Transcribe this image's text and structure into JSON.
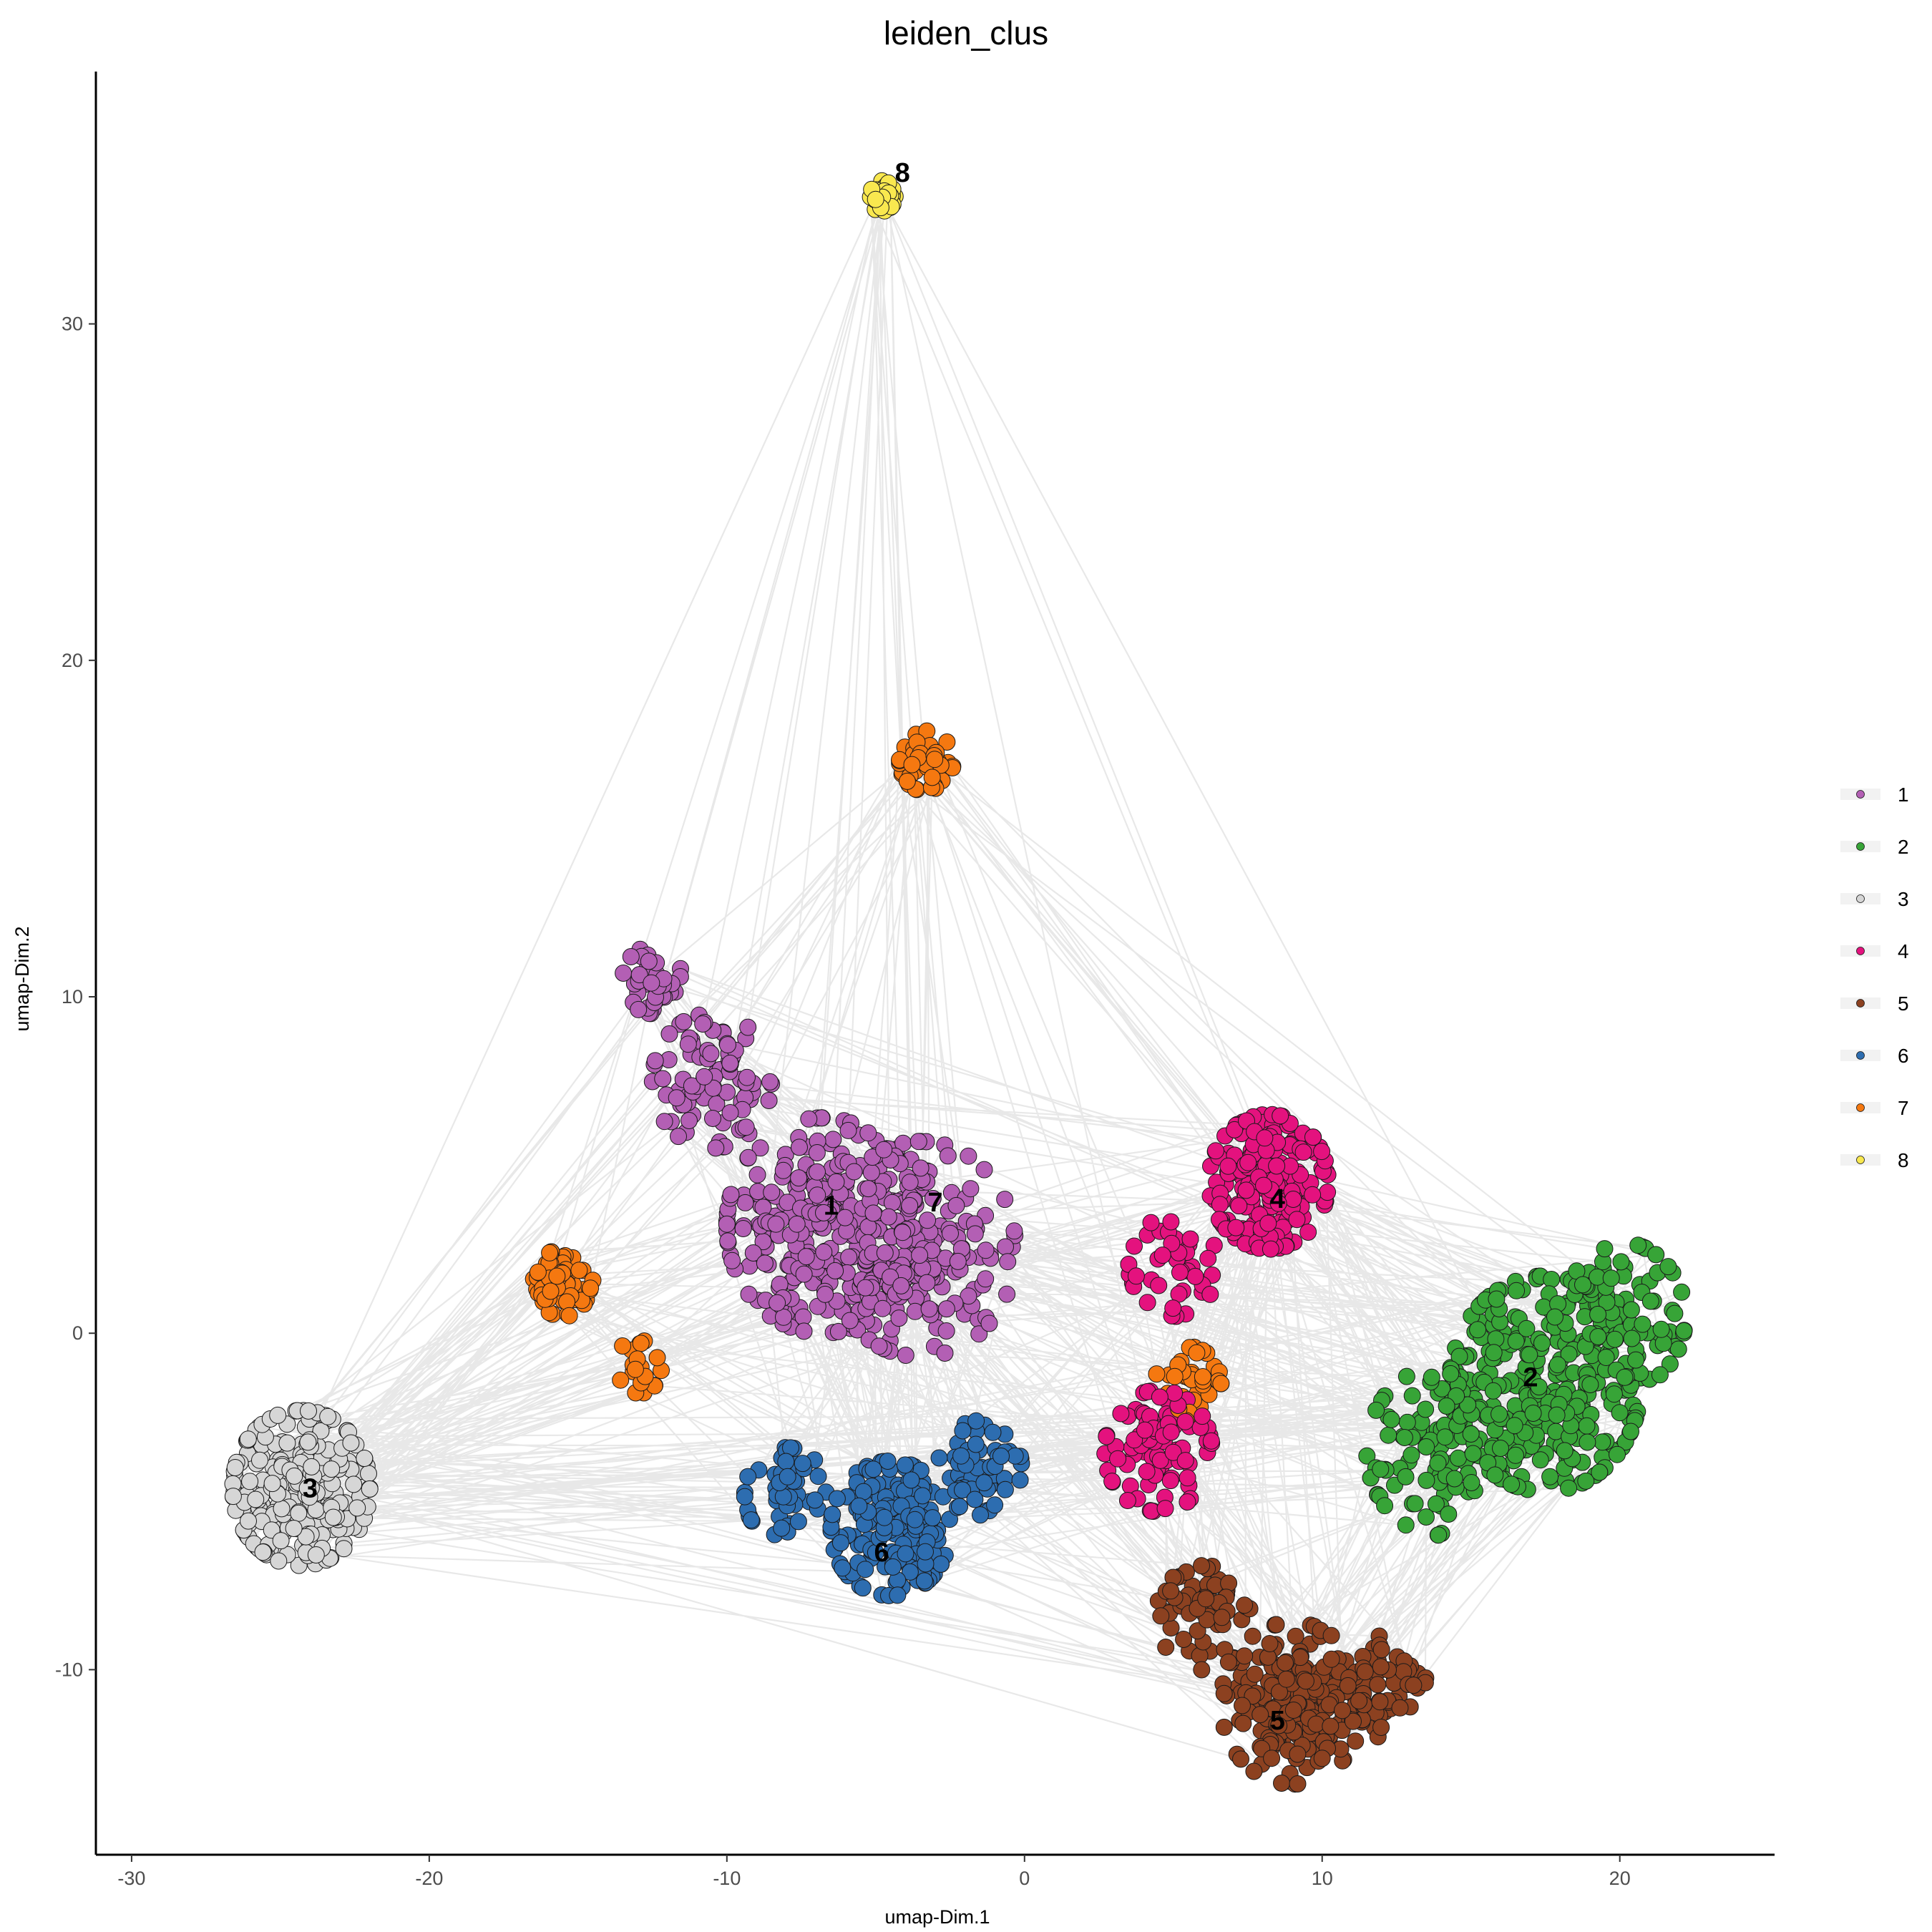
{
  "chart_data": {
    "type": "scatter",
    "title": "leiden_clus",
    "xlabel": "umap-Dim.1",
    "ylabel": "umap-Dim.2",
    "xlim": [
      -31.2,
      25.2
    ],
    "ylim": [
      -15.5,
      37.5
    ],
    "xticks": [
      -30,
      -20,
      -10,
      0,
      10,
      20
    ],
    "yticks": [
      -10,
      0,
      10,
      20,
      30
    ],
    "grid": false,
    "legend_position": "right",
    "network_edges": true,
    "clusters": [
      {
        "name": "1",
        "color": "#B35FB4",
        "label_pos": [
          -6.5,
          3.8
        ],
        "centers": [
          [
            -6.8,
            3.2
          ],
          [
            -3.5,
            2.5
          ],
          [
            -10.5,
            7.5
          ],
          [
            -12.5,
            10.5
          ]
        ],
        "spread": [
          3.2,
          3.2,
          2.0,
          1.0
        ],
        "counts": [
          260,
          200,
          90,
          35
        ]
      },
      {
        "name": "2",
        "color": "#37A437",
        "label_pos": [
          17,
          -1.3
        ],
        "centers": [
          [
            17.5,
            -1.5
          ],
          [
            14.0,
            -3.5
          ],
          [
            20.0,
            0.5
          ]
        ],
        "spread": [
          3.2,
          2.5,
          2.2
        ],
        "counts": [
          260,
          110,
          90
        ]
      },
      {
        "name": "3",
        "color": "#D6D6D6",
        "label_pos": [
          -24,
          -4.6
        ],
        "centers": [
          [
            -24.3,
            -4.6
          ]
        ],
        "spread": [
          2.3
        ],
        "counts": [
          260
        ]
      },
      {
        "name": "4",
        "color": "#E4127E",
        "label_pos": [
          8.5,
          4.0
        ],
        "centers": [
          [
            8.2,
            4.5
          ],
          [
            4.5,
            -3.5
          ],
          [
            5.0,
            2.0
          ]
        ],
        "spread": [
          2.0,
          1.8,
          1.5
        ],
        "counts": [
          200,
          90,
          40
        ]
      },
      {
        "name": "5",
        "color": "#8C4120",
        "label_pos": [
          8.5,
          -11.5
        ],
        "centers": [
          [
            9.0,
            -11.0
          ],
          [
            6.0,
            -8.5
          ],
          [
            12.0,
            -10.5
          ]
        ],
        "spread": [
          2.4,
          1.6,
          1.5
        ],
        "counts": [
          200,
          60,
          60
        ]
      },
      {
        "name": "6",
        "color": "#2D6DB0",
        "label_pos": [
          -4.8,
          -6.5
        ],
        "centers": [
          [
            -4.5,
            -5.8
          ],
          [
            -1.5,
            -4.0
          ],
          [
            -8.0,
            -4.8
          ]
        ],
        "spread": [
          2.0,
          1.4,
          1.4
        ],
        "counts": [
          170,
          60,
          50
        ]
      },
      {
        "name": "7",
        "color": "#F57810",
        "label_pos": [
          -3,
          3.9
        ],
        "centers": [
          [
            -15.5,
            1.5
          ],
          [
            -3.3,
            17.0
          ],
          [
            5.5,
            -1.5
          ],
          [
            -13.0,
            -1.0
          ]
        ],
        "spread": [
          1.0,
          0.9,
          1.1,
          0.8
        ],
        "counts": [
          70,
          45,
          35,
          20
        ]
      },
      {
        "name": "8",
        "color": "#F9E84F",
        "label_pos": [
          -4.1,
          34.5
        ],
        "centers": [
          [
            -4.8,
            33.8
          ]
        ],
        "spread": [
          0.45
        ],
        "counts": [
          35
        ]
      }
    ]
  }
}
